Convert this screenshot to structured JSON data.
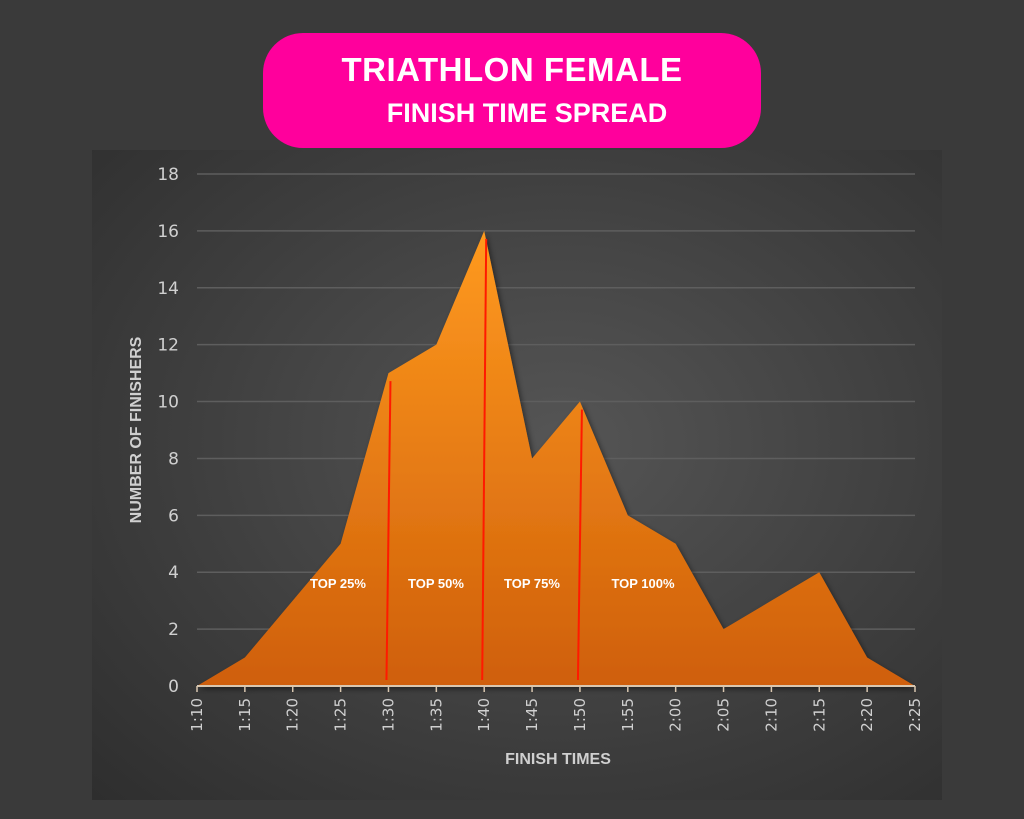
{
  "title": {
    "line1": "TRIATHLON FEMALE",
    "line2": "FINISH TIME SPREAD"
  },
  "colors": {
    "title_bg": "#ff009c",
    "area": "#f08a14",
    "marker_lines": "#ff1a00",
    "background": "#3a3a3a"
  },
  "chart_data": {
    "type": "area",
    "title": "TRIATHLON FEMALE FINISH TIME SPREAD",
    "xlabel": "FINISH TIMES",
    "ylabel": "NUMBER OF FINISHERS",
    "categories": [
      "1:10",
      "1:15",
      "1:20",
      "1:25",
      "1:30",
      "1:35",
      "1:40",
      "1:45",
      "1:50",
      "1:55",
      "2:00",
      "2:05",
      "2:10",
      "2:15",
      "2:20",
      "2:25"
    ],
    "values": [
      0,
      1,
      3,
      5,
      11,
      12,
      16,
      8,
      10,
      6,
      5,
      2,
      3,
      4,
      1,
      0
    ],
    "ylim": [
      0,
      18
    ],
    "yticks": [
      0,
      2,
      4,
      6,
      8,
      10,
      12,
      14,
      16,
      18
    ],
    "grid": true,
    "markers": [
      {
        "x": "1:30",
        "label": "TOP 25%"
      },
      {
        "x": "1:40",
        "label": "TOP 50%"
      },
      {
        "x": "1:50",
        "label": "TOP 75%"
      }
    ],
    "region_labels": [
      "TOP 25%",
      "TOP 50%",
      "TOP 75%",
      "TOP 100%"
    ]
  }
}
